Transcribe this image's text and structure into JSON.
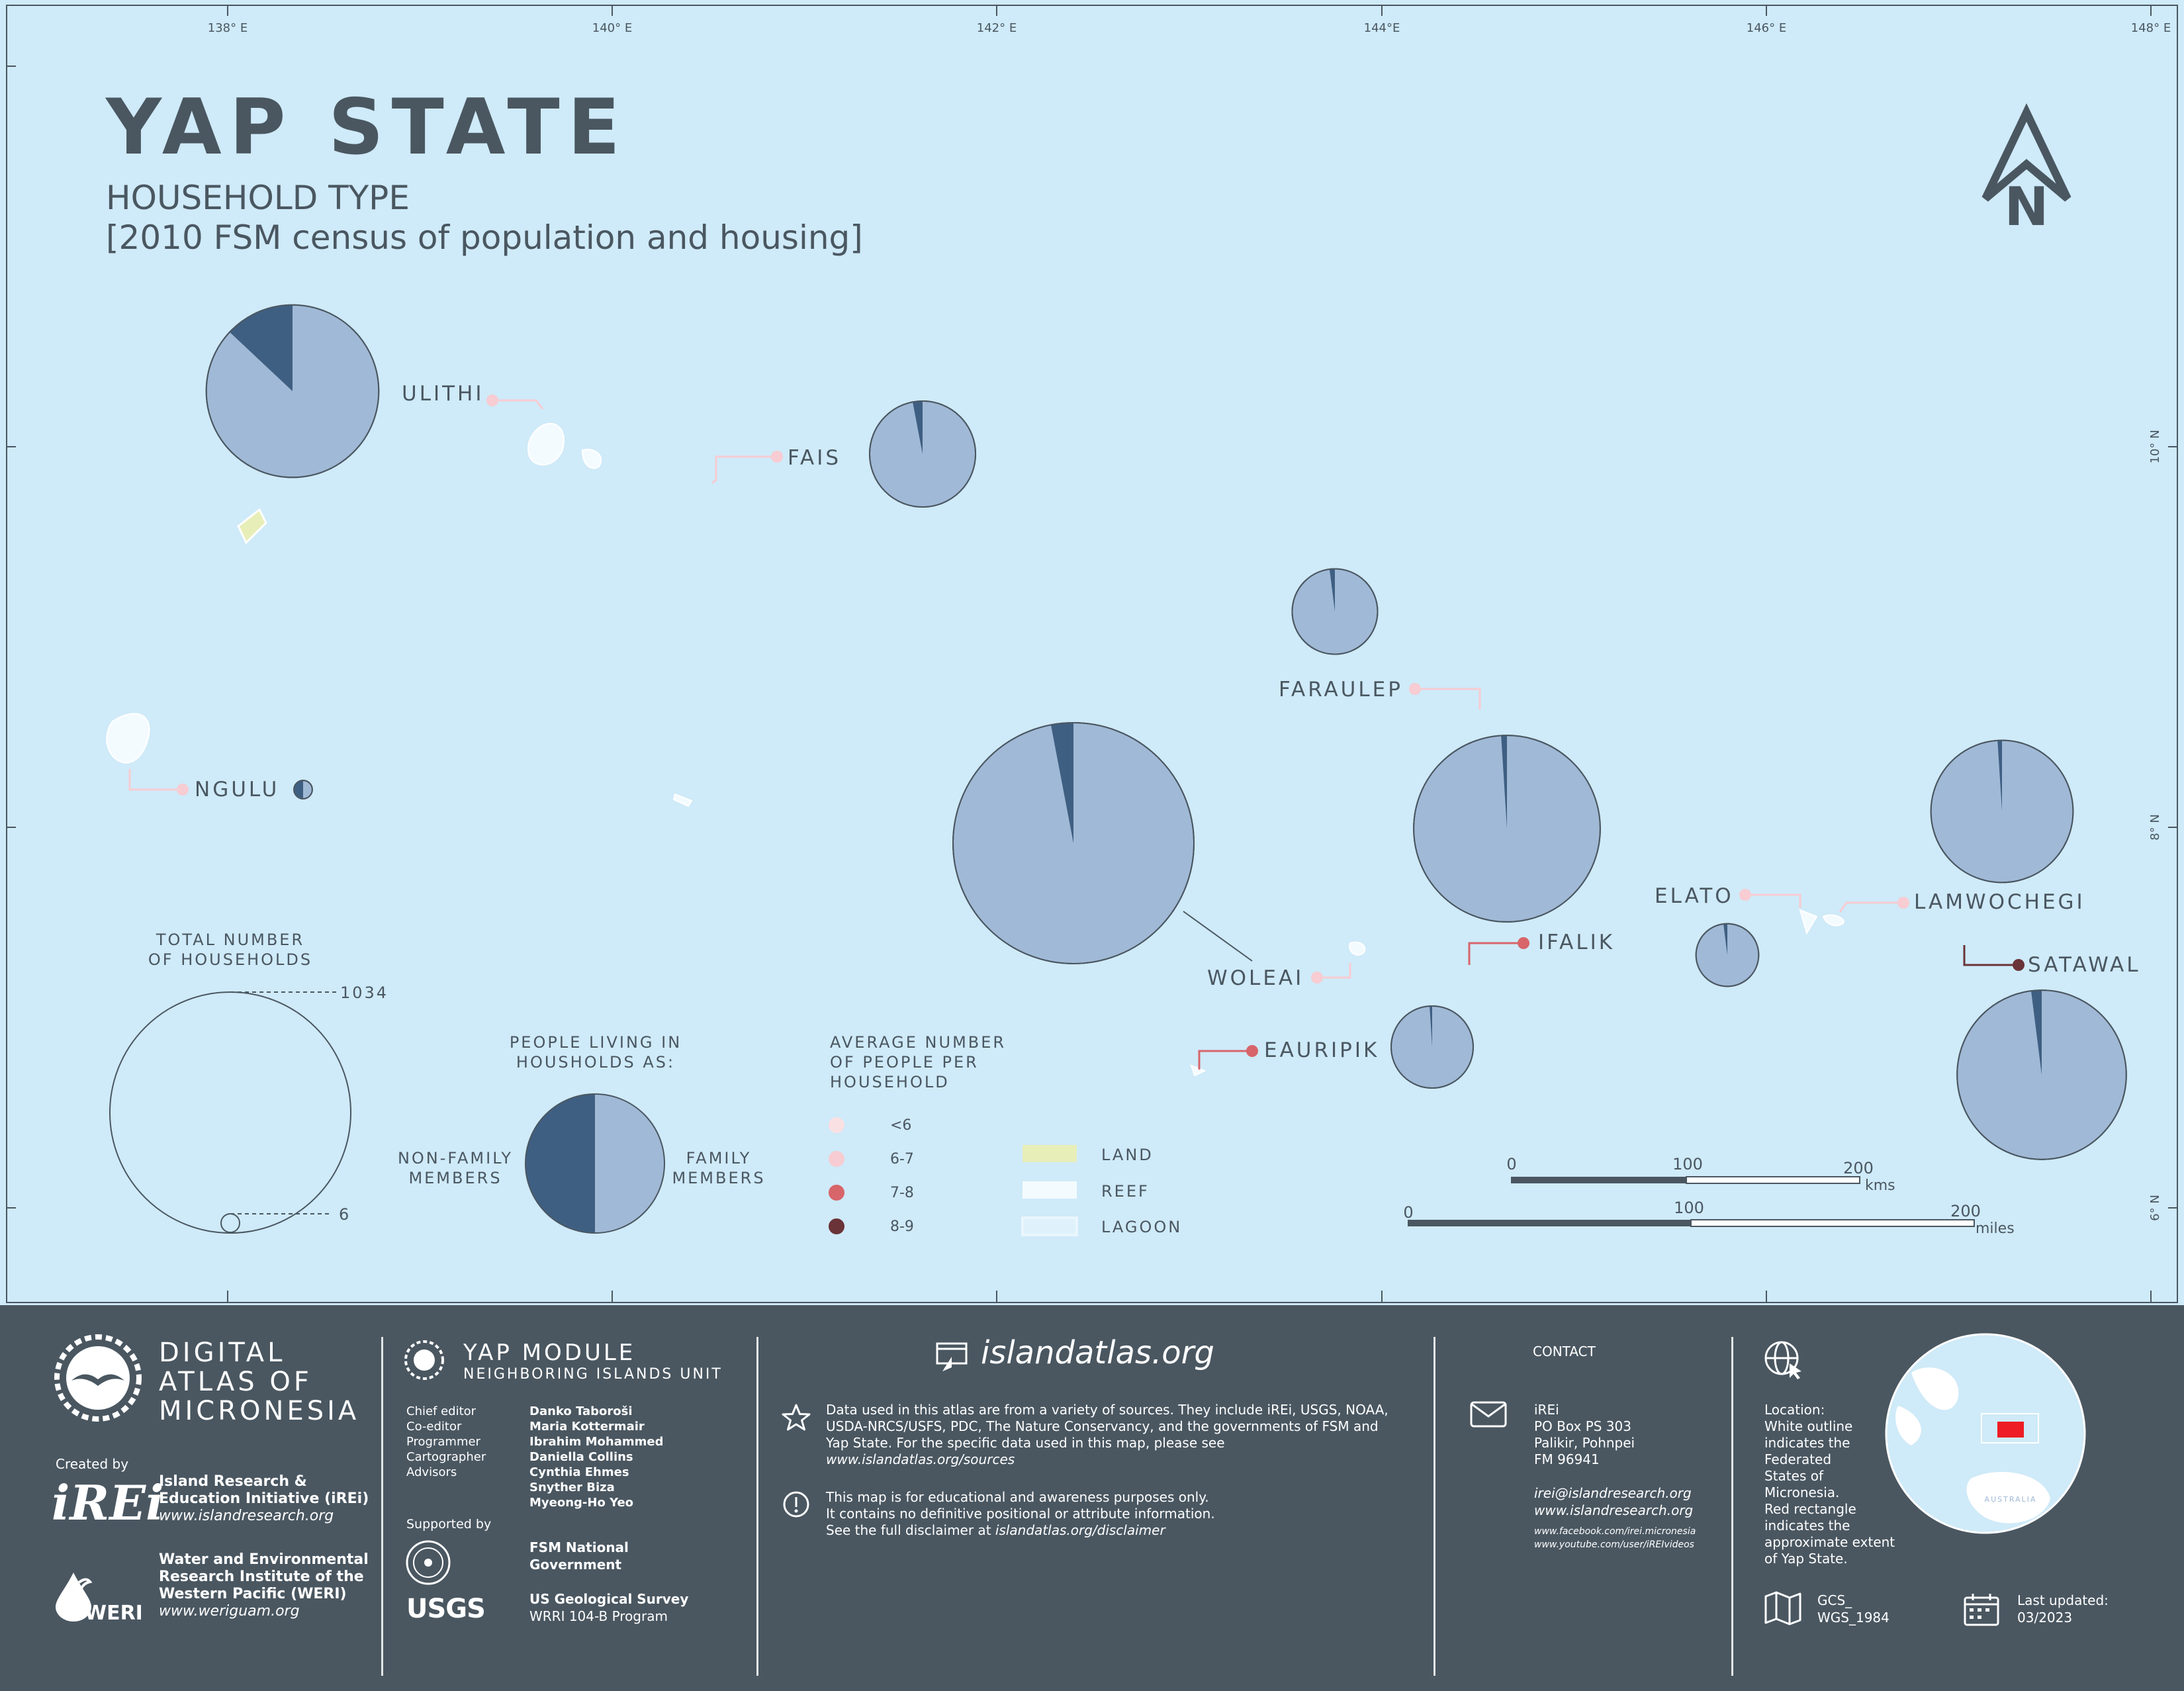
{
  "map": {
    "title": "YAP STATE",
    "subtitle": "HOUSEHOLD TYPE",
    "source": "[2010 FSM census of population and housing]",
    "north_label": "N",
    "colors": {
      "ocean": "#cfeaf8",
      "family": "#a0b9d6",
      "nonfamily": "#3f5f82",
      "land": "#e8eeb8",
      "reef": "#f4fbff",
      "ink": "#4a5761",
      "avg_lt6": "#f9e0e3",
      "avg_6_7": "#f7ccd2",
      "avg_7_8": "#d7656a",
      "avg_8_9": "#6a3338"
    },
    "graticule": {
      "top": [
        "138° E",
        "140° E",
        "142° E",
        "144°E",
        "146° E",
        "148° E"
      ],
      "right": [
        "10° N",
        "8° N",
        "6° N"
      ]
    },
    "islands": [
      {
        "name": "ULITHI",
        "avg": "6-7",
        "total": 530,
        "nonfamily_share": 0.13
      },
      {
        "name": "FAIS",
        "avg": "6-7",
        "total": 200,
        "nonfamily_share": 0.03
      },
      {
        "name": "FARAULEP",
        "avg": "6-7",
        "total": 130,
        "nonfamily_share": 0.02
      },
      {
        "name": "NGULU",
        "avg": "6-7",
        "total": 6,
        "nonfamily_share": 0.5
      },
      {
        "name": "WOLEAI",
        "avg": "6-7",
        "total": 1034,
        "nonfamily_share": 0.03
      },
      {
        "name": "IFALIK",
        "avg": "7-8",
        "total": 620,
        "nonfamily_share": 0.01
      },
      {
        "name": "ELATO",
        "avg": "6-7",
        "total": 70,
        "nonfamily_share": 0.02
      },
      {
        "name": "LAMWOCHEGI",
        "avg": "6-7",
        "total": 360,
        "nonfamily_share": 0.01
      },
      {
        "name": "SATAWAL",
        "avg": "8-9",
        "total": 510,
        "nonfamily_share": 0.02
      },
      {
        "name": "EAURIPIK",
        "avg": "7-8",
        "total": 120,
        "nonfamily_share": 0.01
      }
    ],
    "legend": {
      "total_title_1": "TOTAL NUMBER",
      "total_title_2": "OF HOUSEHOLDS",
      "total_max": "1034",
      "total_min": "6",
      "people_title_1": "PEOPLE LIVING IN",
      "people_title_2": "HOUSHOLDS AS:",
      "nonfamily_1": "NON-FAMILY",
      "nonfamily_2": "MEMBERS",
      "family_1": "FAMILY",
      "family_2": "MEMBERS",
      "avg_title_1": "AVERAGE NUMBER",
      "avg_title_2": "OF PEOPLE PER",
      "avg_title_3": "HOUSEHOLD",
      "avg_classes": [
        "<6",
        "6-7",
        "7-8",
        "8-9"
      ],
      "land": "LAND",
      "reef": "REEF",
      "lagoon": "LAGOON"
    },
    "scale": {
      "km_ticks": [
        "0",
        "100",
        "200"
      ],
      "km_unit": "kms",
      "mi_ticks": [
        "0",
        "100",
        "200"
      ],
      "mi_unit": "miles"
    }
  },
  "footer": {
    "brand_1": "DIGITAL",
    "brand_2": "ATLAS OF",
    "brand_3": "MICRONESIA",
    "created_by": "Created by",
    "irei_logo": "iREi",
    "irei_name_1": "Island Research &",
    "irei_name_2": "Education Initiative (iREi)",
    "irei_url": "www.islandresearch.org",
    "weri_logo": "WERI",
    "weri_name_1": "Water and Environmental",
    "weri_name_2": "Research Institute of the",
    "weri_name_3": "Western Pacific (WERI)",
    "weri_url": "www.weriguam.org",
    "module_1": "YAP MODULE",
    "module_2": "NEIGHBORING ISLANDS UNIT",
    "credits": [
      {
        "role": "Chief editor",
        "name": "Danko Taboroši"
      },
      {
        "role": "Co-editor",
        "name": "Maria Kottermair"
      },
      {
        "role": "Programmer",
        "name": "Ibrahim Mohammed"
      },
      {
        "role": "Cartographer",
        "name": "Daniella Collins"
      },
      {
        "role": "Advisors",
        "name": "Cynthia Ehmes"
      },
      {
        "role": "",
        "name": "Snyther Biza"
      },
      {
        "role": "",
        "name": "Myeong-Ho Yeo"
      }
    ],
    "supported_by": "Supported by",
    "fsm_1": "FSM National",
    "fsm_2": "Government",
    "usgs_logo": "USGS",
    "usgs_1": "US Geological Survey",
    "usgs_2": "WRRI 104-B Program",
    "site": "islandatlas.org",
    "data_note_1": "Data used in this atlas are from a variety of sources. They include iREi, USGS, NOAA,",
    "data_note_2": "USDA-NRCS/USFS, PDC, The Nature Conservancy, and the governments of FSM and",
    "data_note_3": "Yap State. For the specific data used in this map, please see",
    "data_note_4": "www.islandatlas.org/sources",
    "disclaimer_1": "This map is for educational and awareness purposes only.",
    "disclaimer_2": "It contains no definitive positional or attribute information.",
    "disclaimer_3": "See the full disclaimer at ",
    "disclaimer_4": "islandatlas.org/disclaimer",
    "contact": "CONTACT",
    "address": [
      "iREi",
      "PO Box PS 303",
      "Palikir, Pohnpei",
      "FM 96941"
    ],
    "email": "irei@islandresearch.org",
    "web": "www.islandresearch.org",
    "facebook": "www.facebook.com/irei.micronesia",
    "youtube": "www.youtube.com/user/iREIvideos",
    "location_note": [
      "Location:",
      "White outline",
      "indicates the",
      "Federated",
      "States of",
      "Micronesia.",
      "Red rectangle",
      "indicates the",
      "approximate extent",
      "of Yap State."
    ],
    "globe_label": "AUSTRALIA",
    "projection_1": "GCS_",
    "projection_2": "WGS_1984",
    "updated_1": "Last updated:",
    "updated_2": "03/2023"
  }
}
